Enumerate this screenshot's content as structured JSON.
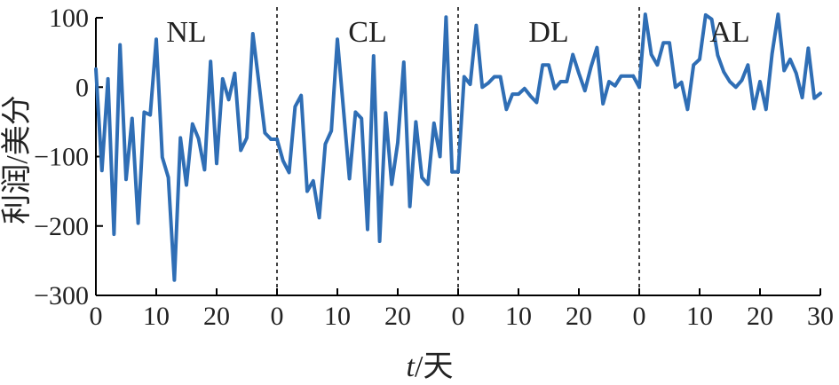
{
  "chart_data": {
    "type": "line",
    "xlabel_italic": "t",
    "xlabel_rest": "/天",
    "ylabel": "利润/美分",
    "ylim": [
      -300,
      100
    ],
    "yticks": [
      100,
      0,
      -100,
      -200,
      -300
    ],
    "ytick_labels": [
      "100",
      "0",
      "−100",
      "−200",
      "−300"
    ],
    "segment_xlim": [
      0,
      30
    ],
    "segment_xticks": [
      0,
      10,
      20
    ],
    "last_segment_xticks": [
      0,
      10,
      20,
      30
    ],
    "segments": [
      {
        "label": "NL",
        "values": [
          26,
          -120,
          12,
          -212,
          61,
          -133,
          -45,
          -196,
          -36,
          -40,
          69,
          -101,
          -130,
          -278,
          -73,
          -141,
          -53,
          -74,
          -119,
          37,
          -110,
          12,
          -18,
          20,
          -91,
          -73,
          77,
          6,
          -66,
          -75
        ]
      },
      {
        "label": "CL",
        "values": [
          -75,
          -106,
          -123,
          -28,
          -12,
          -150,
          -135,
          -188,
          -82,
          -63,
          69,
          -31,
          -132,
          -36,
          -45,
          -205,
          45,
          -222,
          -37,
          -140,
          -80,
          36,
          -172,
          -50,
          -130,
          -140,
          -52,
          -100,
          101,
          -122
        ]
      },
      {
        "label": "DL",
        "values": [
          -122,
          15,
          4,
          89,
          0,
          6,
          15,
          15,
          -32,
          -10,
          -10,
          -2,
          -13,
          -22,
          32,
          32,
          -2,
          8,
          8,
          47,
          20,
          -5,
          29,
          57,
          -24,
          8,
          2,
          16,
          16,
          16
        ]
      },
      {
        "label": "AL",
        "values": [
          0,
          105,
          47,
          32,
          64,
          64,
          0,
          7,
          -32,
          32,
          40,
          104,
          98,
          46,
          22,
          8,
          0,
          10,
          32,
          -31,
          8,
          -32,
          48,
          105,
          24,
          40,
          20,
          -15,
          56,
          -16,
          -9
        ]
      }
    ]
  }
}
